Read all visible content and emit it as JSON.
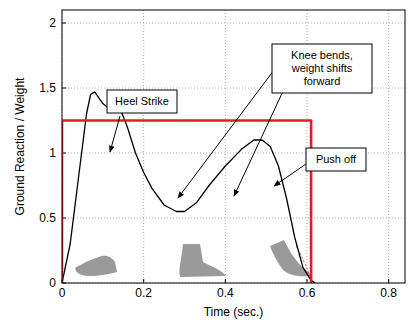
{
  "chart_data": {
    "type": "line",
    "xlabel": "Time (sec.)",
    "ylabel": "Ground Reaction / Weight",
    "xlim": [
      0,
      0.84
    ],
    "ylim": [
      0,
      2.1
    ],
    "xticks": [
      0,
      0.2,
      0.4,
      0.6,
      0.8
    ],
    "yticks": [
      0,
      0.5,
      1,
      1.5,
      2
    ],
    "grid": true,
    "series": [
      {
        "color": "#000000",
        "x": [
          0,
          0.02,
          0.04,
          0.06,
          0.07,
          0.08,
          0.1,
          0.12,
          0.13,
          0.14,
          0.16,
          0.18,
          0.2,
          0.22,
          0.25,
          0.28,
          0.3,
          0.33,
          0.36,
          0.4,
          0.44,
          0.47,
          0.49,
          0.51,
          0.53,
          0.55,
          0.57,
          0.59,
          0.61,
          0.62
        ],
        "values": [
          0,
          0.3,
          0.8,
          1.3,
          1.45,
          1.47,
          1.38,
          1.33,
          1.39,
          1.36,
          1.2,
          1.0,
          0.85,
          0.73,
          0.6,
          0.55,
          0.55,
          0.62,
          0.75,
          0.9,
          1.03,
          1.1,
          1.1,
          1.05,
          0.9,
          0.65,
          0.35,
          0.12,
          0.02,
          0
        ]
      },
      {
        "color": "#e02020",
        "x": [
          0,
          0,
          0.61,
          0.61
        ],
        "values": [
          0,
          1.25,
          1.25,
          0
        ]
      }
    ],
    "annotations": [
      {
        "lines": [
          "Heel Strike"
        ]
      },
      {
        "lines": [
          "Knee bends,",
          "weight shifts",
          "forward"
        ]
      },
      {
        "lines": [
          "Push off"
        ]
      }
    ]
  }
}
